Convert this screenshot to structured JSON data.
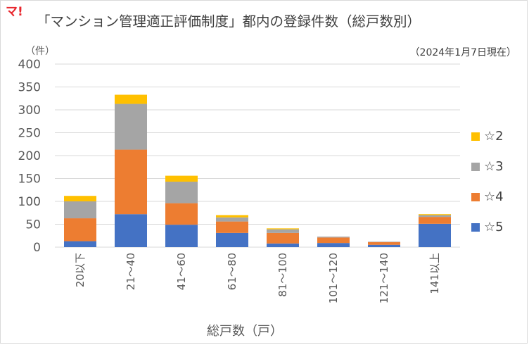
{
  "logo": "マ!",
  "chart_data": {
    "type": "bar",
    "stacked": true,
    "title": "「マンション管理適正評価制度」都内の登録件数（総戸数別）",
    "subtitle": "（2024年1月7日現在）",
    "ylabel": "（件）",
    "xlabel": "総戸数（戸）",
    "ylim": [
      0,
      400
    ],
    "yticks": [
      0,
      50,
      100,
      150,
      200,
      250,
      300,
      350,
      400
    ],
    "grid": true,
    "legend_position": "right",
    "categories": [
      "20以下",
      "21～40",
      "41～60",
      "61～80",
      "81～100",
      "101～120",
      "121～140",
      "141以上"
    ],
    "series": [
      {
        "name": "☆5",
        "color": "#4472c4",
        "values": [
          13,
          72,
          49,
          31,
          8,
          9,
          5,
          51
        ]
      },
      {
        "name": "☆4",
        "color": "#ed7d31",
        "values": [
          50,
          141,
          47,
          25,
          23,
          12,
          6,
          15
        ]
      },
      {
        "name": "☆3",
        "color": "#a5a5a5",
        "values": [
          37,
          100,
          47,
          9,
          8,
          2,
          1,
          4
        ]
      },
      {
        "name": "☆2",
        "color": "#ffc000",
        "values": [
          12,
          20,
          13,
          5,
          2,
          0,
          0,
          2
        ]
      }
    ]
  }
}
